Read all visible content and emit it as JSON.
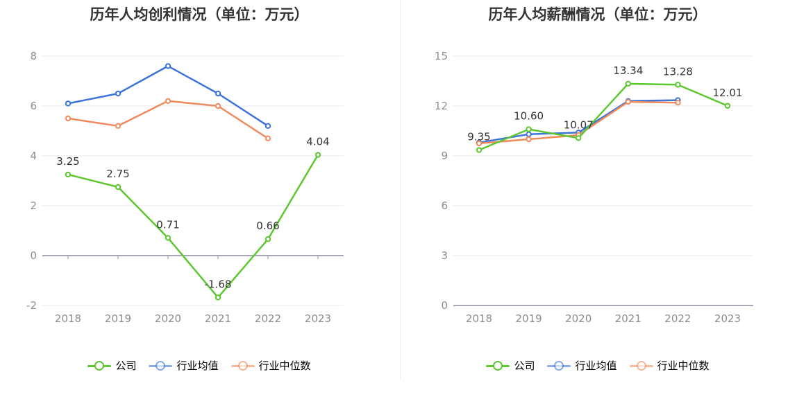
{
  "charts": [
    {
      "title": "历年人均创利情况（单位：万元）",
      "legend": [
        {
          "label": "公司",
          "color": "#5cc72f"
        },
        {
          "label": "行业均值",
          "color": "#3b73d9"
        },
        {
          "label": "行业中位数",
          "color": "#f08a5d"
        }
      ]
    },
    {
      "title": "历年人均薪酬情况（单位：万元）",
      "legend": [
        {
          "label": "公司",
          "color": "#5cc72f"
        },
        {
          "label": "行业均值",
          "color": "#3b73d9"
        },
        {
          "label": "行业中位数",
          "color": "#f08a5d"
        }
      ]
    }
  ],
  "chart_data": [
    {
      "type": "line",
      "title": "历年人均创利情况（单位：万元）",
      "categories": [
        "2018",
        "2019",
        "2020",
        "2021",
        "2022",
        "2023"
      ],
      "ylim": [
        -2,
        8
      ],
      "yticks": [
        -2,
        0,
        2,
        4,
        6,
        8
      ],
      "ytick_labels": [
        "-2",
        "0",
        "2",
        "4",
        "6",
        "8"
      ],
      "grid": true,
      "legend_position": "bottom",
      "series": [
        {
          "name": "公司",
          "color": "#5cc72f",
          "values": [
            3.25,
            2.75,
            0.71,
            -1.68,
            0.66,
            4.04
          ],
          "labels": [
            "3.25",
            "2.75",
            "0.71",
            "-1.68",
            "0.66",
            "4.04"
          ]
        },
        {
          "name": "行业均值",
          "color": "#3b73d9",
          "values": [
            6.1,
            6.5,
            7.6,
            6.5,
            5.2,
            null
          ]
        },
        {
          "name": "行业中位数",
          "color": "#f08a5d",
          "values": [
            5.5,
            5.2,
            6.2,
            6.0,
            4.7,
            null
          ]
        }
      ]
    },
    {
      "type": "line",
      "title": "历年人均薪酬情况（单位：万元）",
      "categories": [
        "2018",
        "2019",
        "2020",
        "2021",
        "2022",
        "2023"
      ],
      "ylim": [
        0,
        15
      ],
      "yticks": [
        0,
        3,
        6,
        9,
        12,
        15
      ],
      "ytick_labels": [
        "0",
        "3",
        "6",
        "9",
        "12",
        "15"
      ],
      "grid": true,
      "legend_position": "bottom",
      "series": [
        {
          "name": "公司",
          "color": "#5cc72f",
          "values": [
            9.35,
            10.6,
            10.07,
            13.34,
            13.28,
            12.01
          ],
          "labels": [
            "9.35",
            "10.60",
            "10.07",
            "13.34",
            "13.28",
            "12.01"
          ]
        },
        {
          "name": "行业均值",
          "color": "#3b73d9",
          "values": [
            9.8,
            10.3,
            10.4,
            12.3,
            12.35,
            null
          ]
        },
        {
          "name": "行业中位数",
          "color": "#f08a5d",
          "values": [
            9.75,
            10.0,
            10.25,
            12.25,
            12.2,
            null
          ]
        }
      ]
    }
  ]
}
